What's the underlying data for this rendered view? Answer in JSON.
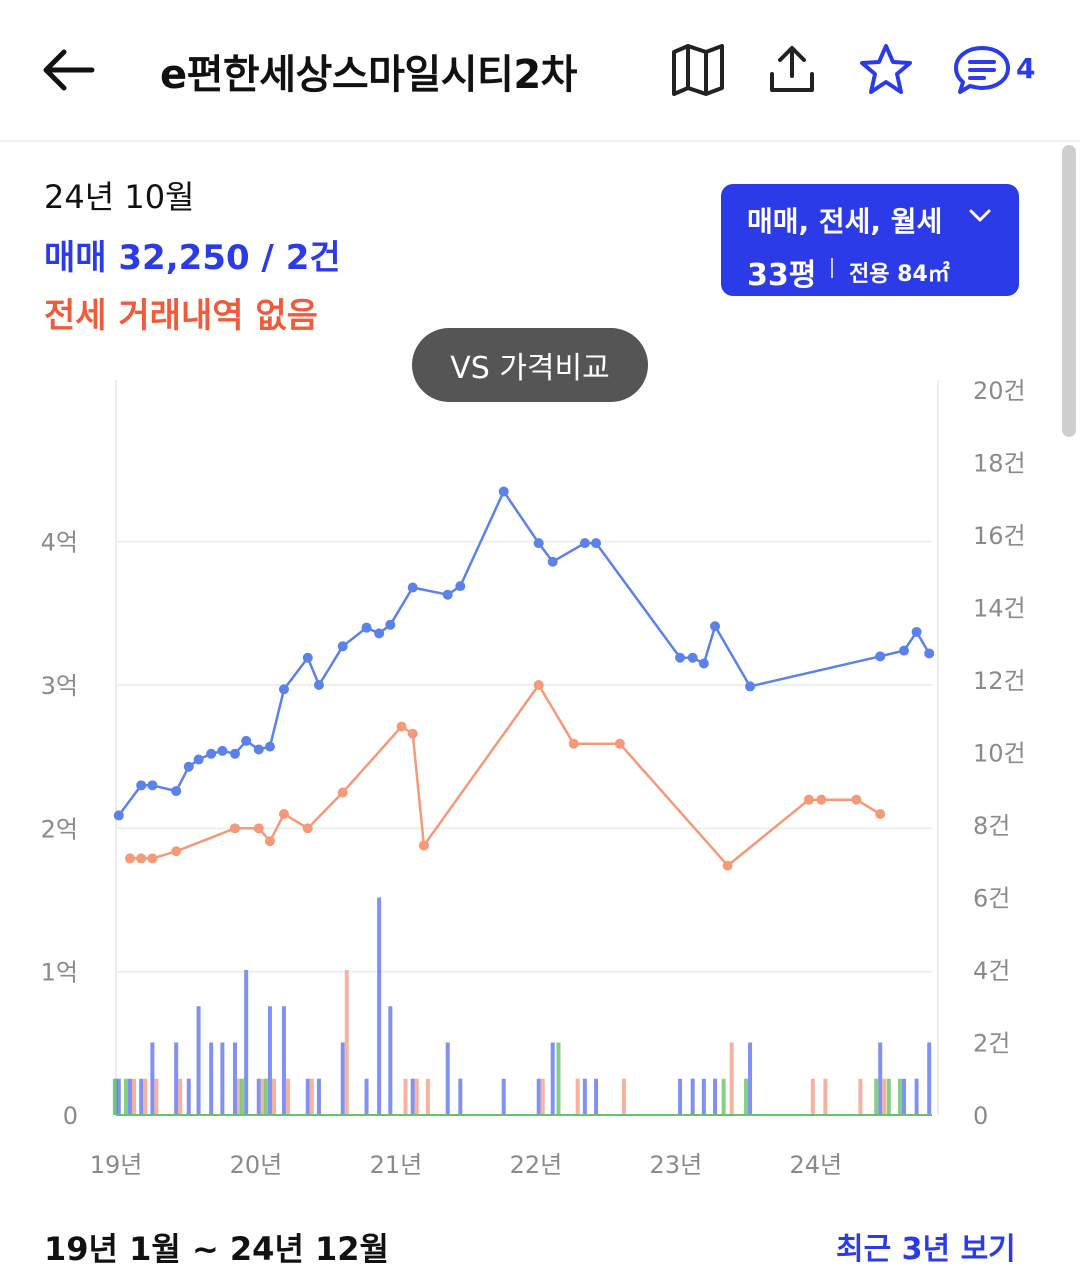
{
  "header": {
    "back_icon": "arrow-left-icon",
    "title": "e편한세상스마일시티2차",
    "map_icon": "map-icon",
    "share_icon": "share-icon",
    "star_icon": "star-icon",
    "chat_icon": "chat-icon",
    "chat_count": "4",
    "accent": "#2b3be8"
  },
  "summary": {
    "date": "24년 10월",
    "sale": "매매 32,250 / 2건",
    "jeonse": "전세 거래내역 없음",
    "sale_color": "#2b3be8",
    "jeonse_color": "#f05c3b"
  },
  "filter": {
    "types": "매매, 전세, 월세",
    "size": "33평",
    "area": "전용 84㎡"
  },
  "vs_button": "VS 가격비교",
  "chart_data": {
    "type": "line",
    "left_ticks": [
      "0",
      "1억",
      "2억",
      "3억",
      "4억"
    ],
    "left_tick_values": [
      0,
      1,
      2,
      3,
      4
    ],
    "right_ticks": [
      "0",
      "2건",
      "4건",
      "6건",
      "8건",
      "10건",
      "12건",
      "14건",
      "16건",
      "18건",
      "20건"
    ],
    "right_tick_values": [
      0,
      2,
      4,
      6,
      8,
      10,
      12,
      14,
      16,
      18,
      20
    ],
    "x_ticks": [
      "19년",
      "20년",
      "21년",
      "22년",
      "23년",
      "24년"
    ],
    "x_tick_values": [
      2019.0,
      2020.0,
      2021.0,
      2022.0,
      2023.0,
      2024.0
    ],
    "xlim": [
      2019.0,
      2024.83
    ],
    "ylim_left": [
      0,
      4.5
    ],
    "ylim_right": [
      0,
      20
    ],
    "grid": true,
    "series": [
      {
        "type": "line",
        "axis": "left",
        "color": "#5b82e8",
        "points": [
          [
            2019.02,
            2.09
          ],
          [
            2019.18,
            2.3
          ],
          [
            2019.26,
            2.3
          ],
          [
            2019.43,
            2.26
          ],
          [
            2019.52,
            2.43
          ],
          [
            2019.59,
            2.48
          ],
          [
            2019.68,
            2.52
          ],
          [
            2019.76,
            2.54
          ],
          [
            2019.85,
            2.52
          ],
          [
            2019.93,
            2.61
          ],
          [
            2020.02,
            2.55
          ],
          [
            2020.1,
            2.57
          ],
          [
            2020.2,
            2.97
          ],
          [
            2020.37,
            3.19
          ],
          [
            2020.45,
            3.0
          ],
          [
            2020.62,
            3.27
          ],
          [
            2020.79,
            3.4
          ],
          [
            2020.88,
            3.36
          ],
          [
            2020.96,
            3.42
          ],
          [
            2021.12,
            3.68
          ],
          [
            2021.37,
            3.63
          ],
          [
            2021.46,
            3.69
          ],
          [
            2021.77,
            4.35
          ],
          [
            2022.02,
            3.99
          ],
          [
            2022.12,
            3.86
          ],
          [
            2022.35,
            3.99
          ],
          [
            2022.43,
            3.99
          ],
          [
            2023.03,
            3.19
          ],
          [
            2023.12,
            3.19
          ],
          [
            2023.2,
            3.15
          ],
          [
            2023.28,
            3.41
          ],
          [
            2023.53,
            2.99
          ],
          [
            2024.46,
            3.2
          ],
          [
            2024.63,
            3.24
          ],
          [
            2024.72,
            3.37
          ],
          [
            2024.81,
            3.22
          ]
        ]
      },
      {
        "type": "line",
        "axis": "left",
        "color": "#f49a78",
        "points": [
          [
            2019.1,
            1.79
          ],
          [
            2019.18,
            1.79
          ],
          [
            2019.26,
            1.79
          ],
          [
            2019.43,
            1.84
          ],
          [
            2019.85,
            2.0
          ],
          [
            2020.02,
            2.0
          ],
          [
            2020.1,
            1.91
          ],
          [
            2020.2,
            2.1
          ],
          [
            2020.37,
            2.0
          ],
          [
            2020.62,
            2.25
          ],
          [
            2021.04,
            2.71
          ],
          [
            2021.12,
            2.66
          ],
          [
            2021.2,
            1.88
          ],
          [
            2022.02,
            3.0
          ],
          [
            2022.27,
            2.59
          ],
          [
            2022.6,
            2.59
          ],
          [
            2023.37,
            1.74
          ],
          [
            2023.95,
            2.2
          ],
          [
            2024.04,
            2.2
          ],
          [
            2024.29,
            2.2
          ],
          [
            2024.46,
            2.1
          ]
        ]
      }
    ],
    "bars": [
      {
        "series": "매매",
        "color": "#6a7ef0",
        "right_axis": true,
        "points": [
          [
            2019.0,
            1
          ],
          [
            2019.02,
            1
          ],
          [
            2019.1,
            1
          ],
          [
            2019.18,
            1
          ],
          [
            2019.26,
            2
          ],
          [
            2019.43,
            2
          ],
          [
            2019.52,
            1
          ],
          [
            2019.59,
            3
          ],
          [
            2019.68,
            2
          ],
          [
            2019.76,
            2
          ],
          [
            2019.85,
            2
          ],
          [
            2019.93,
            4
          ],
          [
            2020.02,
            1
          ],
          [
            2020.1,
            3
          ],
          [
            2020.2,
            3
          ],
          [
            2020.37,
            1
          ],
          [
            2020.45,
            1
          ],
          [
            2020.62,
            2
          ],
          [
            2020.79,
            1
          ],
          [
            2020.88,
            6
          ],
          [
            2020.96,
            3
          ],
          [
            2021.12,
            1
          ],
          [
            2021.37,
            2
          ],
          [
            2021.46,
            1
          ],
          [
            2021.77,
            1
          ],
          [
            2022.02,
            1
          ],
          [
            2022.12,
            2
          ],
          [
            2022.35,
            1
          ],
          [
            2022.43,
            1
          ],
          [
            2023.03,
            1
          ],
          [
            2023.12,
            1
          ],
          [
            2023.2,
            1
          ],
          [
            2023.28,
            1
          ],
          [
            2023.53,
            2
          ],
          [
            2024.46,
            2
          ],
          [
            2024.63,
            1
          ],
          [
            2024.72,
            1
          ],
          [
            2024.81,
            2
          ]
        ]
      },
      {
        "series": "전세",
        "color": "#f4a491",
        "right_axis": true,
        "points": [
          [
            2019.1,
            1
          ],
          [
            2019.18,
            1
          ],
          [
            2019.26,
            1
          ],
          [
            2019.43,
            1
          ],
          [
            2019.85,
            1
          ],
          [
            2020.02,
            1
          ],
          [
            2020.1,
            1
          ],
          [
            2020.2,
            1
          ],
          [
            2020.37,
            1
          ],
          [
            2020.62,
            4
          ],
          [
            2021.04,
            1
          ],
          [
            2021.12,
            1
          ],
          [
            2021.2,
            1
          ],
          [
            2022.02,
            1
          ],
          [
            2022.27,
            1
          ],
          [
            2022.6,
            1
          ],
          [
            2023.37,
            2
          ],
          [
            2023.95,
            1
          ],
          [
            2024.04,
            1
          ],
          [
            2024.29,
            1
          ],
          [
            2024.46,
            1
          ]
        ]
      },
      {
        "series": "월세",
        "color": "#6cc96c",
        "right_axis": true,
        "points": [
          [
            2019.02,
            1
          ],
          [
            2019.1,
            1
          ],
          [
            2019.93,
            1
          ],
          [
            2020.1,
            1
          ],
          [
            2022.19,
            2
          ],
          [
            2023.37,
            1
          ],
          [
            2023.53,
            1
          ],
          [
            2024.46,
            1
          ],
          [
            2024.55,
            1
          ],
          [
            2024.63,
            1
          ]
        ]
      }
    ],
    "baseline_color": "#69c269"
  },
  "period": "19년 1월 ~ 24년 12월",
  "recent_link": "최근 3년 보기"
}
